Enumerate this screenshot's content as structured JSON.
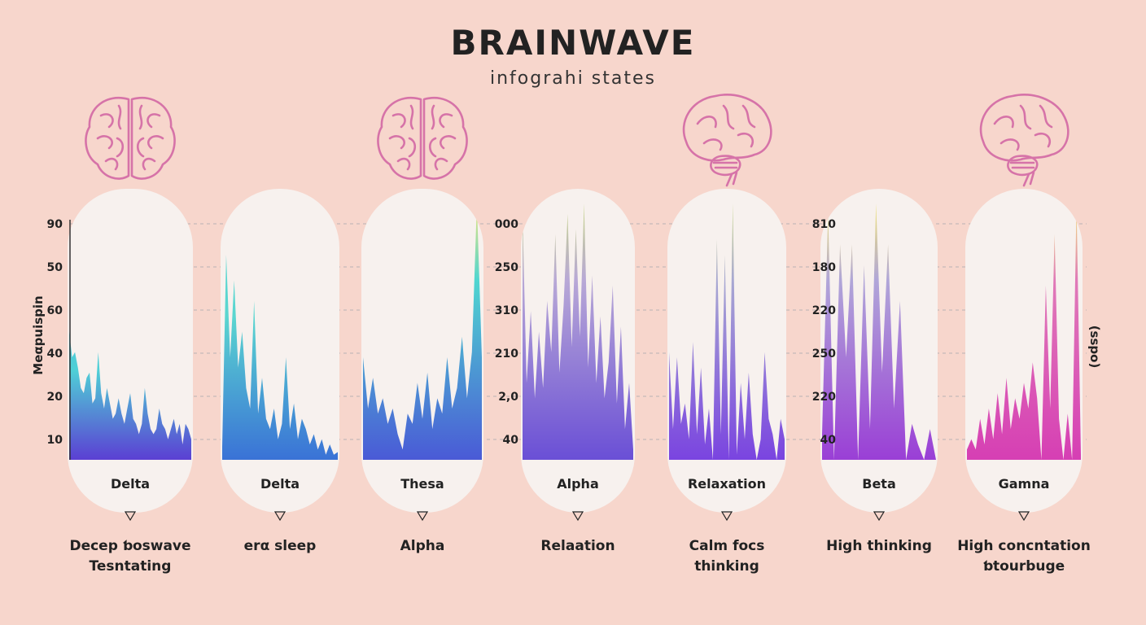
{
  "title": "BRAINWAVE",
  "subtitle": "infograhi states",
  "y_label_left": "Meαpuispin",
  "y_label_right": "(sspo)",
  "colors": {
    "background": "#f7d6cc",
    "panel": "#f7f1ee",
    "brain": "#d673a8",
    "grid": "#b9b3b3"
  },
  "chart_data": {
    "type": "area",
    "title": "BRAINWAVE",
    "subtitle": "infograhi states",
    "y_tick_sets": [
      [
        "90",
        "50",
        "60",
        "40",
        "20",
        "10"
      ],
      [
        "000",
        "250",
        "310",
        "210",
        "2,0",
        "40"
      ],
      [
        "810",
        "180",
        "220",
        "250",
        "220",
        "40"
      ]
    ],
    "panels": [
      {
        "name": "Delta",
        "description": [
          "Decep ƅoswave",
          "Tesntating"
        ],
        "brain_icon": "brain-top-icon",
        "gradient": [
          "#4fd0d6",
          "#5b3fd3"
        ],
        "peak_color": "#4fc7d8",
        "values": [
          50,
          40,
          42,
          36,
          28,
          26,
          32,
          34,
          22,
          24,
          42,
          26,
          20,
          28,
          22,
          16,
          18,
          24,
          18,
          14,
          20,
          26,
          16,
          14,
          10,
          14,
          28,
          18,
          12,
          10,
          12,
          20,
          14,
          12,
          8,
          12,
          16,
          10,
          14,
          6,
          14,
          12,
          8
        ]
      },
      {
        "name": "Delta",
        "description": [
          "erα sleep"
        ],
        "brain_icon": "none",
        "gradient": [
          "#5ad6d0",
          "#3a72d6"
        ],
        "peak_color": "#5ad6d0",
        "values": [
          5,
          80,
          40,
          70,
          36,
          50,
          28,
          20,
          62,
          18,
          32,
          16,
          12,
          20,
          8,
          14,
          40,
          12,
          22,
          8,
          16,
          12,
          6,
          10,
          4,
          8,
          2,
          6,
          2,
          3
        ]
      },
      {
        "name": "Thesa",
        "description": [
          "Alpha"
        ],
        "brain_icon": "brain-top-icon",
        "gradient": [
          "#4fd6d0",
          "#4a5ad6"
        ],
        "peak_color": "#f0e57a",
        "values": [
          40,
          20,
          32,
          18,
          24,
          14,
          20,
          10,
          4,
          18,
          14,
          30,
          16,
          34,
          12,
          24,
          18,
          40,
          20,
          28,
          48,
          24,
          42,
          100,
          40
        ]
      },
      {
        "name": "Alpha",
        "description": [
          "Relaation"
        ],
        "brain_icon": "none",
        "gradient": [
          "#b8a8d6",
          "#6a4fd6"
        ],
        "peak_color": "#c8d88a",
        "values": [
          96,
          30,
          58,
          24,
          50,
          28,
          62,
          42,
          88,
          34,
          60,
          96,
          44,
          90,
          48,
          100,
          36,
          72,
          30,
          56,
          24,
          38,
          68,
          22,
          52,
          12,
          30,
          4
        ]
      },
      {
        "name": "Relaxation",
        "description": [
          "Calm focs",
          "thinking"
        ],
        "brain_icon": "brain-side-icon",
        "gradient": [
          "#a8a8d2",
          "#7a44e0"
        ],
        "peak_color": "#c8d88a",
        "values": [
          42,
          12,
          40,
          14,
          22,
          8,
          46,
          10,
          36,
          6,
          20,
          0,
          86,
          10,
          80,
          0,
          100,
          2,
          30,
          8,
          34,
          10,
          0,
          8,
          42,
          16,
          10,
          0,
          16,
          8
        ]
      },
      {
        "name": "Beta",
        "description": [
          "High thinking"
        ],
        "brain_icon": "none",
        "gradient": [
          "#b0a6d8",
          "#9a3fd6"
        ],
        "peak_color": "#f0e57a",
        "values": [
          10,
          96,
          0,
          84,
          40,
          84,
          0,
          76,
          12,
          100,
          34,
          84,
          20,
          62,
          0,
          14,
          6,
          0,
          12,
          0
        ]
      },
      {
        "name": "Gamna",
        "description": [
          "High concntation",
          "ƅtourbuge"
        ],
        "brain_icon": "brain-side-icon",
        "gradient": [
          "#e07ab8",
          "#d63fb4"
        ],
        "peak_color": "#f0e57a",
        "values": [
          4,
          8,
          4,
          16,
          6,
          20,
          8,
          26,
          10,
          32,
          12,
          24,
          16,
          30,
          20,
          38,
          24,
          0,
          68,
          20,
          88,
          16,
          0,
          18,
          0,
          100,
          2
        ]
      }
    ]
  }
}
